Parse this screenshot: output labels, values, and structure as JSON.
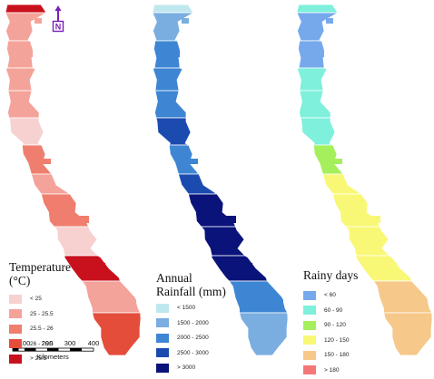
{
  "maps": [
    {
      "id": "temperature",
      "legend": {
        "title_lines": [
          "Temperature",
          "(°C)"
        ],
        "items": [
          {
            "label": "< 25",
            "color": "#f7d1d0"
          },
          {
            "label": "25 - 25.5",
            "color": "#f4a39a"
          },
          {
            "label": "25.5 - 26",
            "color": "#ef7e6e"
          },
          {
            "label": "26 - 26.5",
            "color": "#e34d3a"
          },
          {
            "label": "> 26.5",
            "color": "#c9101d"
          }
        ]
      },
      "segment_colors": [
        "#c9101d",
        "#f4a39a",
        "#f4a39a",
        "#f4a39a",
        "#f4a39a",
        "#f7d1d0",
        "#ef7e6e",
        "#f4a39a",
        "#ef7e6e",
        "#f7d1d0",
        "#c9101d",
        "#f4a39a",
        "#e34d3a",
        "#e34d3a",
        "#e34d3a"
      ]
    },
    {
      "id": "rainfall",
      "legend": {
        "title_lines": [
          "Annual",
          "Rainfall (mm)"
        ],
        "items": [
          {
            "label": "< 1500",
            "color": "#bfe8ee"
          },
          {
            "label": "1500 - 2000",
            "color": "#7aaee0"
          },
          {
            "label": "2000 - 2500",
            "color": "#3e86d4"
          },
          {
            "label": "2500 - 3000",
            "color": "#1c4bb0"
          },
          {
            "label": "> 3000",
            "color": "#0a137a"
          }
        ]
      },
      "segment_colors": [
        "#bfe8ee",
        "#7aaee0",
        "#3e86d4",
        "#3e86d4",
        "#3e86d4",
        "#1c4bb0",
        "#3e86d4",
        "#1c4bb0",
        "#0a137a",
        "#0a137a",
        "#0a137a",
        "#3e86d4",
        "#7aaee0",
        "#7aaee0",
        "#bfe8ee"
      ]
    },
    {
      "id": "rainy_days",
      "legend": {
        "title_lines": [
          "Rainy days"
        ],
        "items": [
          {
            "label": "< 60",
            "color": "#76a9ec"
          },
          {
            "label": "60 - 90",
            "color": "#7ef0dc"
          },
          {
            "label": "90 - 120",
            "color": "#a6ef5c"
          },
          {
            "label": "120 - 150",
            "color": "#f8f876"
          },
          {
            "label": "150 - 180",
            "color": "#f6c88a"
          },
          {
            "label": "> 180",
            "color": "#f47878"
          }
        ]
      },
      "segment_colors": [
        "#7ef0dc",
        "#76a9ec",
        "#76a9ec",
        "#7ef0dc",
        "#7ef0dc",
        "#7ef0dc",
        "#a6ef5c",
        "#f8f876",
        "#f8f876",
        "#f8f876",
        "#f8f876",
        "#f6c88a",
        "#f6c88a",
        "#f47878",
        "#f47878"
      ]
    }
  ],
  "north_arrow": {
    "label": "N",
    "color": "#7a1fb8"
  },
  "scale_bar": {
    "ticks": [
      "0",
      "100",
      "200",
      "300",
      "400"
    ],
    "unit": "Kilometers"
  }
}
